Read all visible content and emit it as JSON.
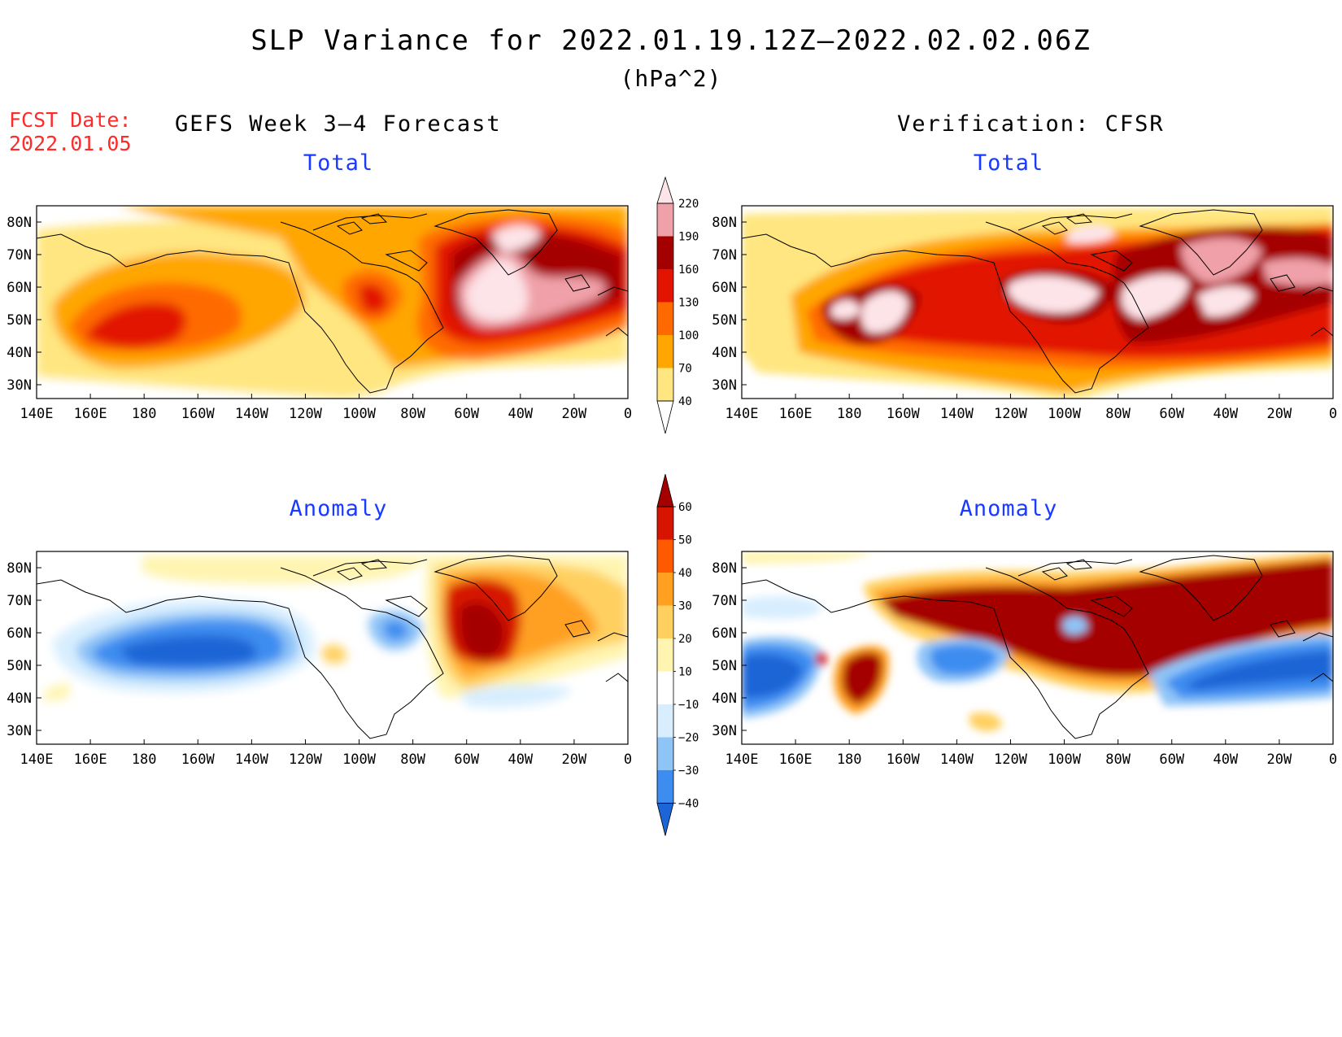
{
  "header": {
    "title": "SLP Variance for 2022.01.19.12Z–2022.02.02.06Z",
    "units": "(hPa^2)",
    "fcst_label": "FCST Date:",
    "fcst_date": "2022.01.05"
  },
  "columns": {
    "left_title": "GEFS Week 3–4 Forecast",
    "right_title": "Verification: CFSR"
  },
  "panels": {
    "total_label": "Total",
    "anomaly_label": "Anomaly"
  },
  "axes": {
    "lon_labels": [
      "140E",
      "160E",
      "180",
      "160W",
      "140W",
      "120W",
      "100W",
      "80W",
      "60W",
      "40W",
      "20W",
      "0"
    ],
    "lat_labels": [
      "80N",
      "70N",
      "60N",
      "50N",
      "40N",
      "30N"
    ]
  },
  "colorbars": {
    "total": {
      "levels": [
        "40",
        "70",
        "100",
        "130",
        "160",
        "190",
        "220"
      ],
      "colors": [
        "#ffe680",
        "#ffa600",
        "#ff6a00",
        "#e21400",
        "#a50000",
        "#f0a0a8",
        "#fde4e8"
      ]
    },
    "anomaly": {
      "levels": [
        "−40",
        "−30",
        "−20",
        "−10",
        "10",
        "20",
        "30",
        "40",
        "50",
        "60"
      ],
      "colors": [
        "#1b65d6",
        "#3d8df0",
        "#8fc4f7",
        "#d8eefe",
        "#ffffff",
        "#fff4b0",
        "#ffd060",
        "#ffa020",
        "#ff5a00",
        "#d61400",
        "#a50000"
      ]
    }
  }
}
